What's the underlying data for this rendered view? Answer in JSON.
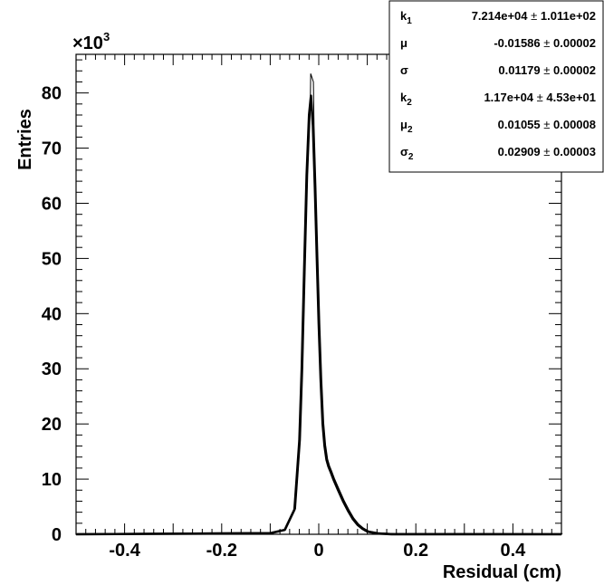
{
  "chart_data": {
    "type": "line",
    "xlabel": "Residual (cm)",
    "ylabel": "Entries",
    "y_multiplier_base": "×10",
    "y_multiplier_exp": "3",
    "xlim": [
      -0.5,
      0.5
    ],
    "ylim": [
      0,
      87
    ],
    "x_ticks": [
      "-0.4",
      "-0.2",
      "0",
      "0.2",
      "0.4"
    ],
    "x_tick_values": [
      -0.4,
      -0.2,
      0,
      0.2,
      0.4
    ],
    "y_ticks": [
      "0",
      "10",
      "20",
      "30",
      "40",
      "50",
      "60",
      "70",
      "80"
    ],
    "y_tick_values": [
      0,
      10,
      20,
      30,
      40,
      50,
      60,
      70,
      80
    ],
    "grid": false,
    "legend": "top-right",
    "series": [
      {
        "x": [
          -0.5,
          -0.1,
          -0.07,
          -0.05,
          -0.04,
          -0.035,
          -0.03,
          -0.025,
          -0.02,
          -0.016,
          -0.012,
          -0.008,
          -0.004,
          0.0,
          0.004,
          0.008,
          0.012,
          0.016,
          0.02,
          0.025,
          0.03,
          0.04,
          0.05,
          0.06,
          0.07,
          0.08,
          0.09,
          0.1,
          0.12,
          0.15,
          0.5
        ],
        "y": [
          0.0,
          0.2,
          0.8,
          4.5,
          17.0,
          30.0,
          48.0,
          65.0,
          76.0,
          79.5,
          74.0,
          63.0,
          50.0,
          38.0,
          28.0,
          20.0,
          16.0,
          13.5,
          12.3,
          11.2,
          10.0,
          8.0,
          6.0,
          4.3,
          2.8,
          1.7,
          1.0,
          0.5,
          0.15,
          0.02,
          0.0
        ]
      }
    ],
    "stats": [
      {
        "label": "k",
        "sub": "1",
        "value": "7.214e+04",
        "error": "1.011e+02"
      },
      {
        "label": "μ",
        "sub": "",
        "value": "-0.01586",
        "error": "0.00002"
      },
      {
        "label": "σ",
        "sub": "",
        "value": "0.01179",
        "error": "0.00002"
      },
      {
        "label": "k",
        "sub": "2",
        "value": "1.17e+04",
        "error": "4.53e+01"
      },
      {
        "label": "μ",
        "sub": "2",
        "value": "0.01055",
        "error": "0.00008"
      },
      {
        "label": "σ",
        "sub": "2",
        "value": "0.02909",
        "error": "0.00003"
      }
    ],
    "pm_symbol": "±"
  }
}
